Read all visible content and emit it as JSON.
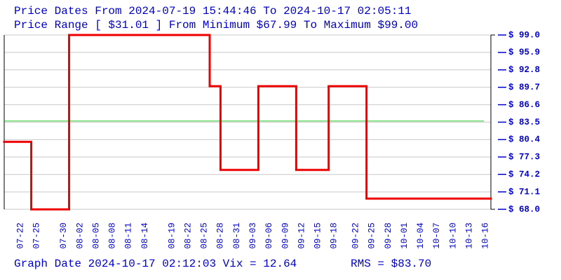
{
  "chart_data": {
    "type": "step",
    "title": "Price Dates From 2024-07-19 15:44:46 To 2024-10-17 02:05:11",
    "subtitle": "Price Range [ $31.01 ] From Minimum $67.99 To Maximum $99.00",
    "footer": "Graph Date 2024-10-17 02:12:03 Vix = 12.64",
    "footer_rms": "RMS = $83.70",
    "reference_line": {
      "value": 83.7,
      "color": "#22cc22"
    },
    "series": [
      {
        "color": "#ee0000",
        "x": [
          "2024-07-19",
          "2024-07-24",
          "2024-07-31",
          "2024-08-26",
          "2024-08-28",
          "2024-09-04",
          "2024-09-11",
          "2024-09-17",
          "2024-09-24"
        ],
        "values": [
          80.0,
          67.99,
          99.0,
          89.9,
          75.0,
          89.9,
          75.0,
          89.9,
          69.9
        ]
      }
    ],
    "xlim": [
      "2024-07-19",
      "2024-10-17"
    ],
    "xticks": [
      {
        "value": "2024-07-22",
        "label": "07-22"
      },
      {
        "value": "2024-07-25",
        "label": "07-25"
      },
      {
        "value": "2024-07-30",
        "label": "07-30"
      },
      {
        "value": "2024-08-02",
        "label": "08-02"
      },
      {
        "value": "2024-08-05",
        "label": "08-05"
      },
      {
        "value": "2024-08-08",
        "label": "08-08"
      },
      {
        "value": "2024-08-11",
        "label": "08-11"
      },
      {
        "value": "2024-08-14",
        "label": "08-14"
      },
      {
        "value": "2024-08-19",
        "label": "08-19"
      },
      {
        "value": "2024-08-22",
        "label": "08-22"
      },
      {
        "value": "2024-08-25",
        "label": "08-25"
      },
      {
        "value": "2024-08-28",
        "label": "08-28"
      },
      {
        "value": "2024-08-31",
        "label": "08-31"
      },
      {
        "value": "2024-09-03",
        "label": "09-03"
      },
      {
        "value": "2024-09-06",
        "label": "09-06"
      },
      {
        "value": "2024-09-09",
        "label": "09-09"
      },
      {
        "value": "2024-09-12",
        "label": "09-12"
      },
      {
        "value": "2024-09-15",
        "label": "09-15"
      },
      {
        "value": "2024-09-18",
        "label": "09-18"
      },
      {
        "value": "2024-09-22",
        "label": "09-22"
      },
      {
        "value": "2024-09-25",
        "label": "09-25"
      },
      {
        "value": "2024-09-28",
        "label": "09-28"
      },
      {
        "value": "2024-10-01",
        "label": "10-01"
      },
      {
        "value": "2024-10-04",
        "label": "10-04"
      },
      {
        "value": "2024-10-07",
        "label": "10-07"
      },
      {
        "value": "2024-10-10",
        "label": "10-10"
      },
      {
        "value": "2024-10-13",
        "label": "10-13"
      },
      {
        "value": "2024-10-16",
        "label": "10-16"
      }
    ],
    "ylim": [
      68.0,
      99.0
    ],
    "yticks": [
      {
        "value": 68.0,
        "label": "$ 68.0"
      },
      {
        "value": 71.1,
        "label": "$ 71.1"
      },
      {
        "value": 74.2,
        "label": "$ 74.2"
      },
      {
        "value": 77.3,
        "label": "$ 77.3"
      },
      {
        "value": 80.4,
        "label": "$ 80.4"
      },
      {
        "value": 83.5,
        "label": "$ 83.5"
      },
      {
        "value": 86.6,
        "label": "$ 86.6"
      },
      {
        "value": 89.7,
        "label": "$ 89.7"
      },
      {
        "value": 92.8,
        "label": "$ 92.8"
      },
      {
        "value": 95.9,
        "label": "$ 95.9"
      },
      {
        "value": 99.0,
        "label": "$ 99.0"
      }
    ],
    "grid": true
  }
}
